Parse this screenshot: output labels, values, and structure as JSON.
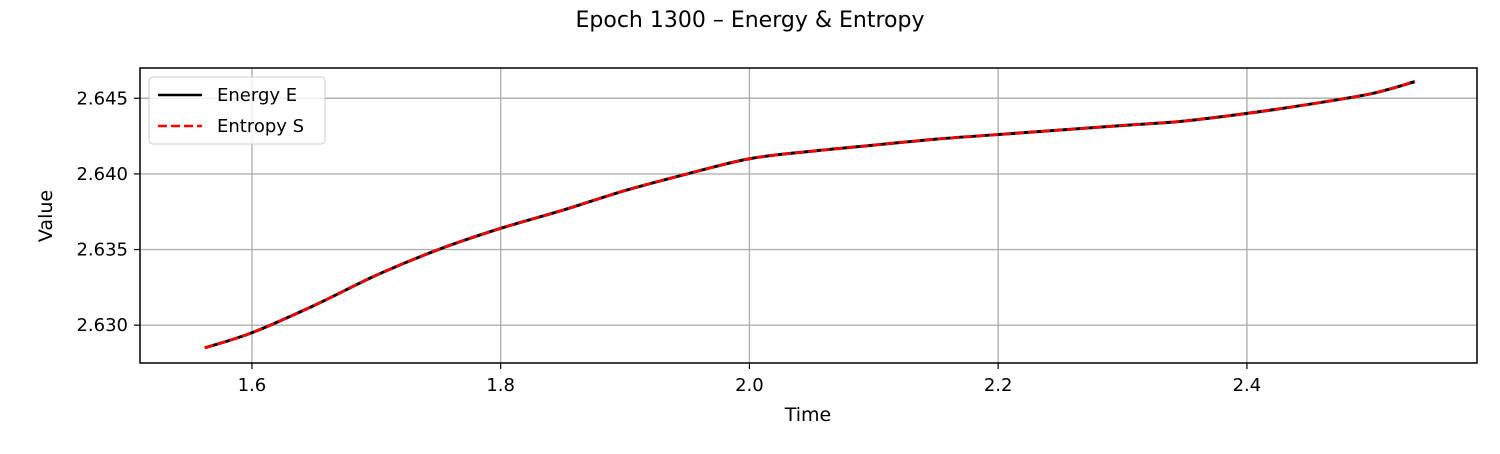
{
  "chart_data": {
    "type": "line",
    "title": "Epoch 1300 – Energy & Entropy",
    "xlabel": "Time",
    "ylabel": "Value",
    "xlim": [
      1.51,
      2.585
    ],
    "ylim": [
      2.6275,
      2.647
    ],
    "xticks": [
      1.6,
      1.8,
      2.0,
      2.2,
      2.4
    ],
    "xtick_labels": [
      "1.6",
      "1.8",
      "2.0",
      "2.2",
      "2.4"
    ],
    "yticks": [
      2.63,
      2.635,
      2.64,
      2.645
    ],
    "ytick_labels": [
      "2.630",
      "2.635",
      "2.640",
      "2.645"
    ],
    "grid": true,
    "legend_position": "top-left",
    "series": [
      {
        "name": "Energy E",
        "color": "#000000",
        "style": "solid",
        "x": [
          1.562,
          1.6,
          1.65,
          1.7,
          1.75,
          1.8,
          1.85,
          1.9,
          1.95,
          2.0,
          2.05,
          2.1,
          2.15,
          2.2,
          2.25,
          2.3,
          2.35,
          2.4,
          2.45,
          2.5,
          2.535
        ],
        "y": [
          2.6285,
          2.6295,
          2.6313,
          2.6333,
          2.635,
          2.6364,
          2.6376,
          2.6389,
          2.64,
          2.641,
          2.6415,
          2.6419,
          2.6423,
          2.6426,
          2.6429,
          2.6432,
          2.6435,
          2.644,
          2.6446,
          2.6453,
          2.6461
        ]
      },
      {
        "name": "Entropy S",
        "color": "#ff0000",
        "style": "dashed",
        "x": [
          1.562,
          1.6,
          1.65,
          1.7,
          1.75,
          1.8,
          1.85,
          1.9,
          1.95,
          2.0,
          2.05,
          2.1,
          2.15,
          2.2,
          2.25,
          2.3,
          2.35,
          2.4,
          2.45,
          2.5,
          2.535
        ],
        "y": [
          2.6285,
          2.6295,
          2.6313,
          2.6333,
          2.635,
          2.6364,
          2.6376,
          2.6389,
          2.64,
          2.641,
          2.6415,
          2.6419,
          2.6423,
          2.6426,
          2.6429,
          2.6432,
          2.6435,
          2.644,
          2.6446,
          2.6453,
          2.6461
        ]
      }
    ]
  }
}
